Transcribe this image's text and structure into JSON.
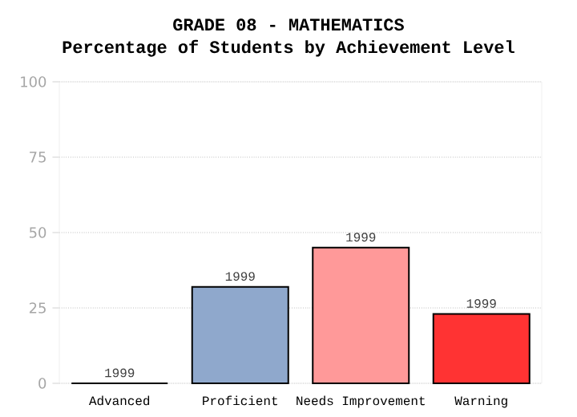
{
  "chart_data": {
    "type": "bar",
    "title": "GRADE 08 - MATHEMATICS",
    "subtitle": "Percentage of Students by Achievement Level",
    "categories": [
      "Advanced",
      "Proficient",
      "Needs Improvement",
      "Warning"
    ],
    "series": [
      {
        "name": "1999",
        "values": [
          0,
          32,
          45,
          23
        ]
      }
    ],
    "colors": [
      "#8fa8cc",
      "#8fa8cc",
      "#ff9999",
      "#ff3333"
    ],
    "ylim": [
      0,
      100
    ],
    "yticks": [
      0,
      25,
      50,
      75,
      100
    ],
    "grid": "y"
  }
}
